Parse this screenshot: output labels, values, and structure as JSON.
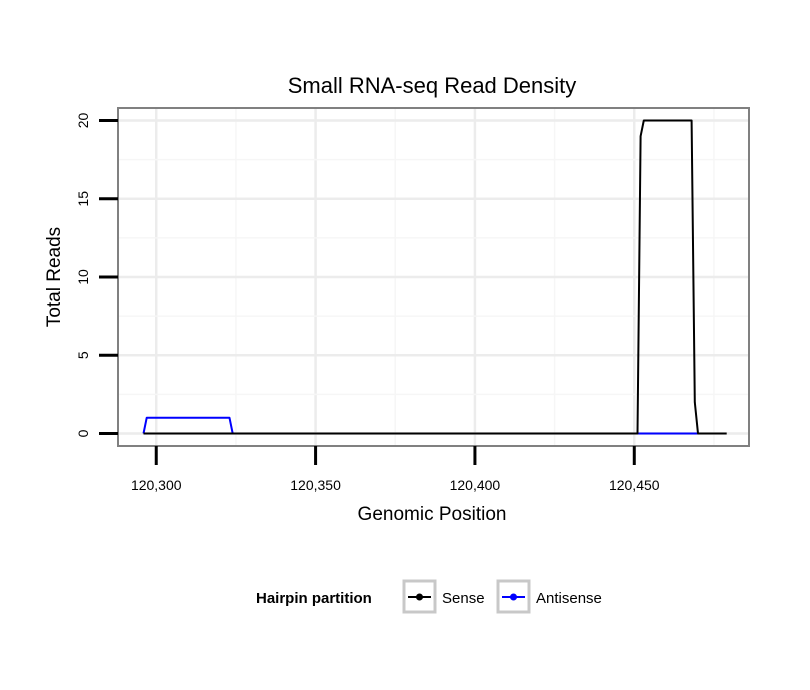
{
  "chart_data": {
    "type": "line",
    "title": "Small RNA-seq Read Density",
    "xlabel": "Genomic Position",
    "ylabel": "Total Reads",
    "xlim": [
      120288,
      120486
    ],
    "ylim": [
      -0.8,
      20.8
    ],
    "x_ticks": [
      120300,
      120350,
      120400,
      120450
    ],
    "x_tick_labels": [
      "120,300",
      "120,350",
      "120,400",
      "120,450"
    ],
    "y_ticks": [
      0,
      5,
      10,
      15,
      20
    ],
    "y_tick_labels": [
      "0",
      "5",
      "10",
      "15",
      "20"
    ],
    "grid": true,
    "legend": {
      "title": "Hairpin partition",
      "position": "bottom",
      "entries": [
        {
          "name": "Sense",
          "color": "#000000"
        },
        {
          "name": "Antisense",
          "color": "#0000ff"
        }
      ]
    },
    "series": [
      {
        "name": "Sense",
        "color": "#000000",
        "x": [
          120296,
          120451,
          120452,
          120453,
          120468,
          120469,
          120470,
          120479
        ],
        "y": [
          0,
          0,
          19,
          20,
          20,
          2,
          0,
          0
        ]
      },
      {
        "name": "Antisense",
        "color": "#0000ff",
        "x": [
          120296,
          120297,
          120323,
          120324,
          120470
        ],
        "y": [
          0,
          1,
          1,
          0,
          0
        ]
      }
    ]
  }
}
